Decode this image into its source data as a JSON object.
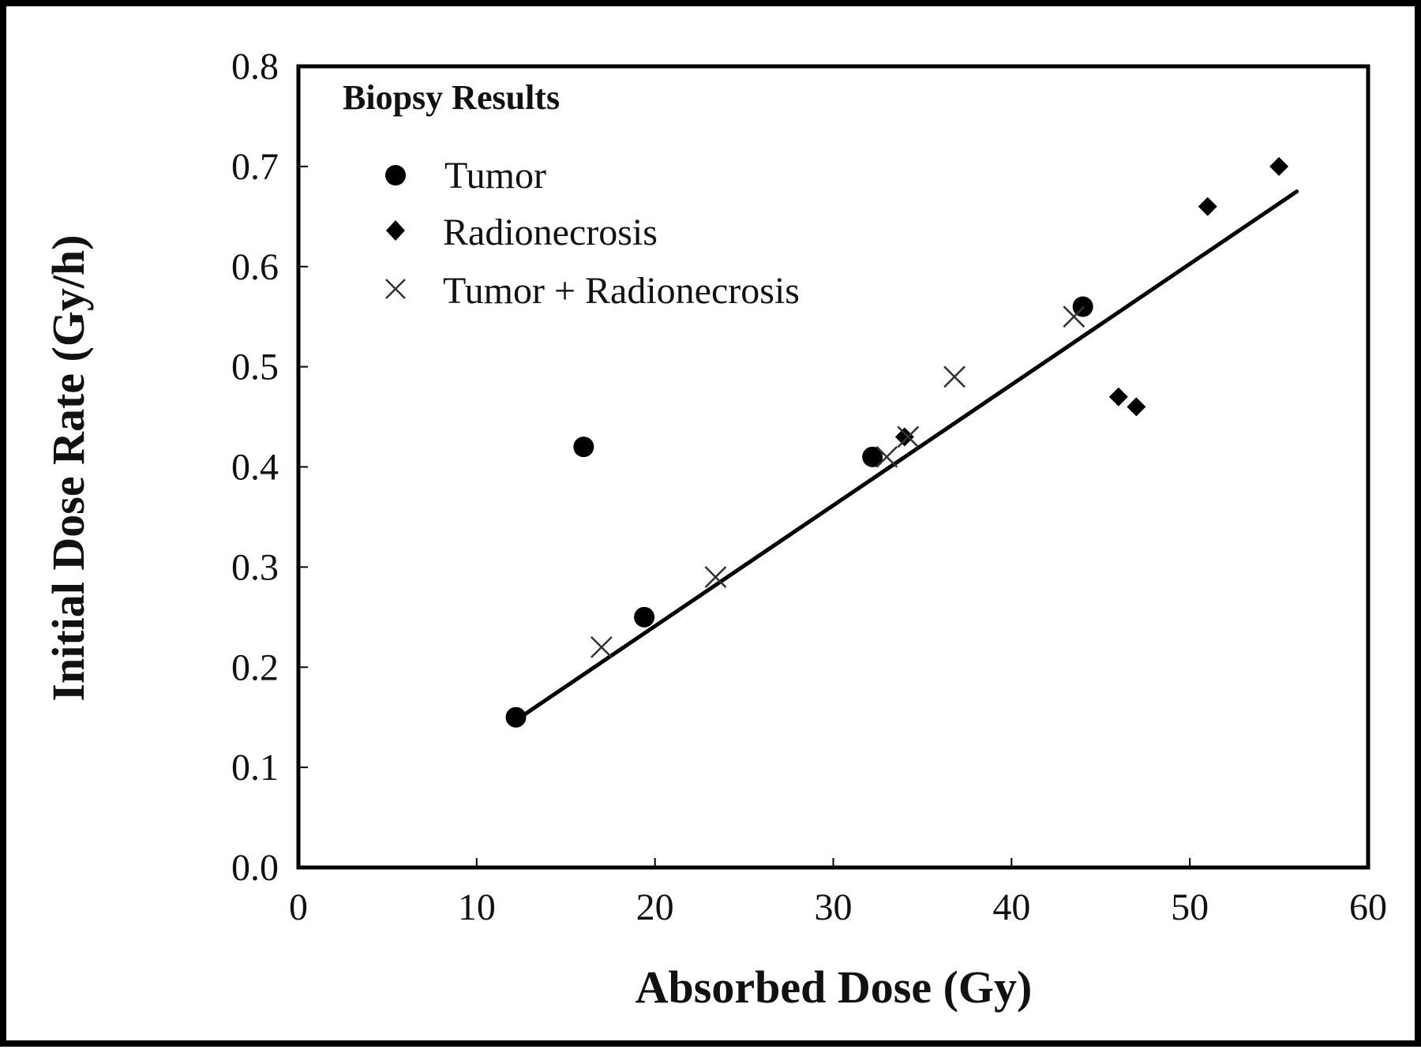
{
  "chart_data": {
    "type": "scatter",
    "xlabel": "Absorbed Dose (Gy)",
    "ylabel": "Initial Dose Rate (Gy/h)",
    "xlim": [
      0,
      60
    ],
    "ylim": [
      0,
      0.8
    ],
    "x_ticks": [
      "0",
      "10",
      "20",
      "30",
      "40",
      "50",
      "60"
    ],
    "y_ticks": [
      "0.0",
      "0.1",
      "0.2",
      "0.3",
      "0.4",
      "0.5",
      "0.6",
      "0.7",
      "0.8"
    ],
    "grid": false,
    "legend": {
      "title": "Biopsy Results",
      "placement": "top-left"
    },
    "series": [
      {
        "name": "Tumor",
        "marker": "circle",
        "points": [
          [
            12.2,
            0.15
          ],
          [
            16.0,
            0.42
          ],
          [
            19.4,
            0.25
          ],
          [
            32.2,
            0.41
          ],
          [
            44.0,
            0.56
          ]
        ]
      },
      {
        "name": "Radionecrosis",
        "marker": "diamond",
        "points": [
          [
            34.0,
            0.43
          ],
          [
            46.0,
            0.47
          ],
          [
            47.0,
            0.46
          ],
          [
            51.0,
            0.66
          ],
          [
            55.0,
            0.7
          ]
        ]
      },
      {
        "name": "Tumor + Radionecrosis",
        "marker": "x",
        "points": [
          [
            17.0,
            0.22
          ],
          [
            23.4,
            0.29
          ],
          [
            33.0,
            0.41
          ],
          [
            34.2,
            0.43
          ],
          [
            36.8,
            0.49
          ],
          [
            43.5,
            0.55
          ]
        ]
      }
    ],
    "fit_line": {
      "x": [
        12.2,
        56.0
      ],
      "y": [
        0.147,
        0.675
      ]
    },
    "colors": {
      "marker": "#000000",
      "x_marker": "#333333",
      "line": "#000000"
    }
  }
}
